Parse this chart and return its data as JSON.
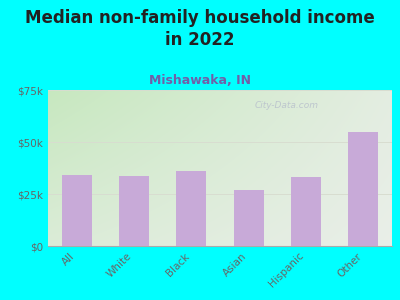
{
  "title": "Median non-family household income\nin 2022",
  "subtitle": "Mishawaka, IN",
  "categories": [
    "All",
    "White",
    "Black",
    "Asian",
    "Hispanic",
    "Other"
  ],
  "values": [
    34000,
    33500,
    36000,
    27000,
    33000,
    55000
  ],
  "bar_color": "#c8aad8",
  "ylim": [
    0,
    75000
  ],
  "yticks": [
    0,
    25000,
    50000,
    75000
  ],
  "ytick_labels": [
    "$0",
    "$25k",
    "$50k",
    "$75k"
  ],
  "background_outer": "#00ffff",
  "background_inner_topleft": "#c8e8c0",
  "background_inner_right": "#f0f0f0",
  "title_fontsize": 12,
  "subtitle_fontsize": 9,
  "subtitle_color": "#7060a8",
  "title_color": "#222222",
  "tick_color": "#666666",
  "watermark_text": "City-Data.com",
  "watermark_color": "#b8c0cc",
  "grid_color": "#d8ddd0",
  "grid_linewidth": 0.7
}
